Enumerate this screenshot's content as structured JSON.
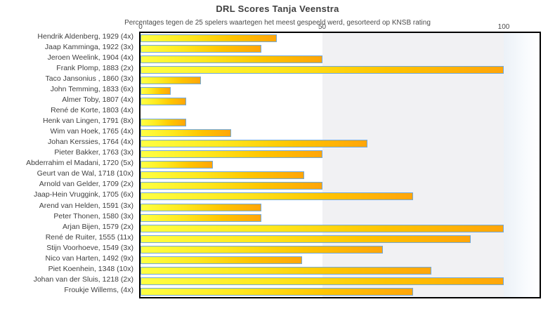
{
  "chart_data": {
    "type": "bar",
    "orientation": "horizontal",
    "title": "DRL Scores Tanja Veenstra",
    "subtitle": "Percentages tegen de 25 spelers waartegen het meest gespeeld werd, gesorteerd op KNSB rating",
    "xlim": [
      0,
      100
    ],
    "x_ticks": [
      0,
      50,
      100
    ],
    "grid": "bands",
    "legend": "off",
    "plot_bands": [
      {
        "from": 0,
        "to": 50,
        "color": "#ffffff"
      },
      {
        "from": 50,
        "to": 100,
        "color": "#f1f1f3"
      }
    ],
    "bar_style": {
      "fill_gradient_start": "#ffff42",
      "fill_gradient_end": "#ffa50a",
      "border_color": "#6fa8dc"
    },
    "categories": [
      "Hendrik Aldenberg, 1929 (4x)",
      "Jaap Kamminga, 1922 (3x)",
      "Jeroen Weelink, 1904 (4x)",
      "Frank Plomp, 1883 (2x)",
      "Taco Jansonius , 1860 (3x)",
      "John Temming, 1833 (6x)",
      "Almer Toby, 1807 (4x)",
      "René de Korte, 1803 (4x)",
      "Henk van Lingen, 1791 (8x)",
      "Wim van Hoek, 1765 (4x)",
      "Johan Kerssies, 1764 (4x)",
      "Pieter Bakker, 1763 (3x)",
      "Abderrahim el Madani, 1720 (5x)",
      "Geurt van de Wal, 1718 (10x)",
      "Arnold van Gelder, 1709 (2x)",
      "Jaap-Hein Vruggink, 1705 (6x)",
      "Arend van Helden, 1591 (3x)",
      "Peter Thonen, 1580 (3x)",
      "Arjan Bijen, 1579 (2x)",
      "René de Ruiter, 1555 (11x)",
      "Stijn Voorhoeve, 1549 (3x)",
      "Nico van Harten, 1492 (9x)",
      "Piet Koenhein, 1348 (10x)",
      "Johan van der Sluis, 1218 (2x)",
      "Froukje Willems,  (4x)"
    ],
    "values": [
      37.5,
      33.3,
      50,
      100,
      16.7,
      8.3,
      12.5,
      0,
      12.5,
      25,
      62.5,
      50,
      20,
      45,
      50,
      75,
      33.3,
      33.3,
      100,
      90.9,
      66.7,
      44.4,
      80,
      100,
      75
    ]
  }
}
